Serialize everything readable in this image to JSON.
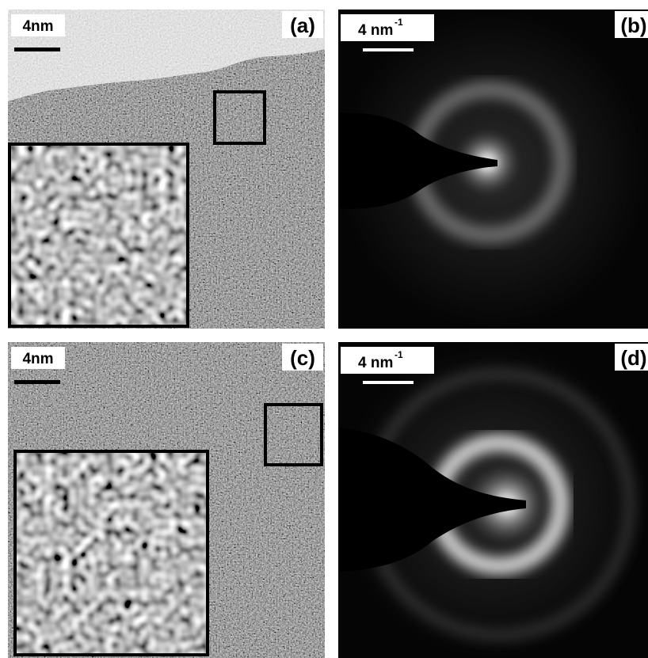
{
  "panels": [
    {
      "label": "(a)",
      "scale_bar": "4nm"
    },
    {
      "label": "(b)",
      "scale_bar": "4 nm",
      "scale_bar_exponent": "-1"
    },
    {
      "label": "(c)",
      "scale_bar": "4nm"
    },
    {
      "label": "(d)",
      "scale_bar": "4 nm",
      "scale_bar_exponent": "-1"
    }
  ]
}
